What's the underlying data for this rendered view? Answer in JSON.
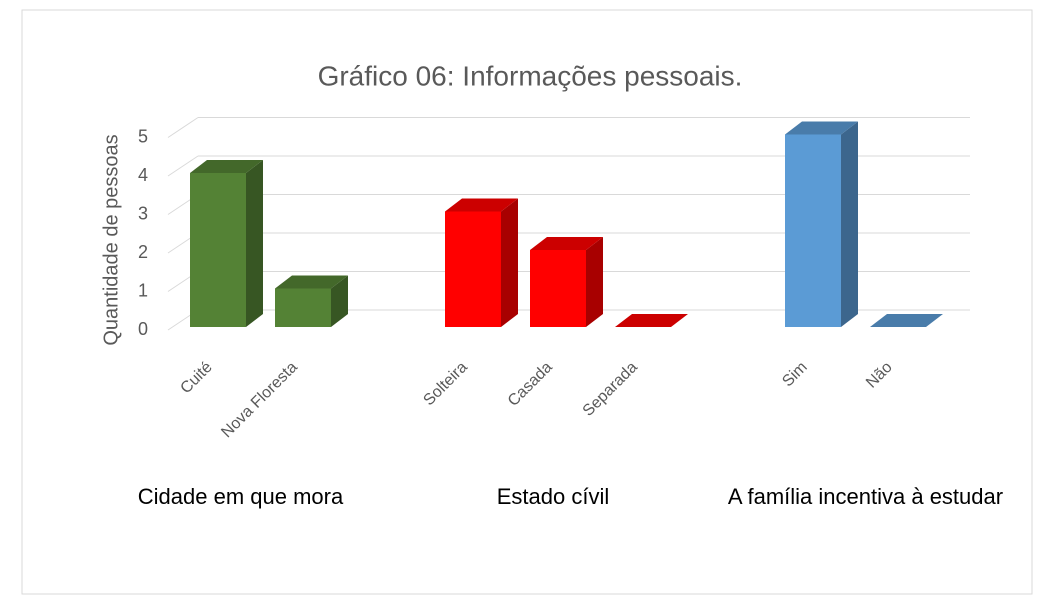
{
  "chart_data": {
    "type": "bar3d",
    "title": "Gráfico 06: Informações pessoais.",
    "y_label": "Quantidade de pessoas",
    "ylim": [
      0,
      5
    ],
    "yticks": [
      0,
      1,
      2,
      3,
      4,
      5
    ],
    "grid": true,
    "groups": [
      {
        "name": "Cidade em que mora",
        "color": "#548235",
        "categories": [
          "Cuité",
          "Nova Floresta"
        ],
        "values": [
          4,
          1
        ]
      },
      {
        "name": "Estado cívil",
        "color": "#ff0000",
        "categories": [
          "Solteira",
          "Casada",
          "Separada"
        ],
        "values": [
          3,
          2,
          0
        ]
      },
      {
        "name": "A família incentiva à estudar",
        "color": "#5b9bd5",
        "categories": [
          "Sim",
          "Não"
        ],
        "values": [
          5,
          0
        ]
      }
    ]
  }
}
